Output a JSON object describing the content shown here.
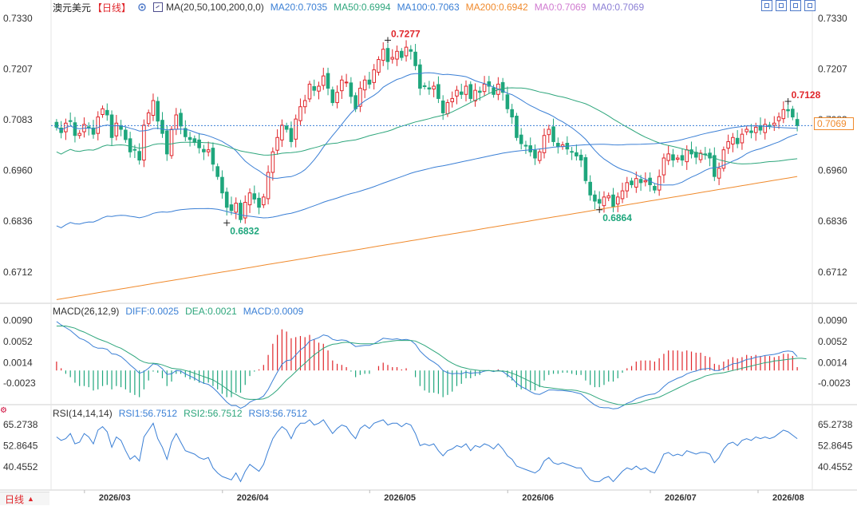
{
  "header": {
    "symbol": "澳元美元",
    "period": "【日线】",
    "settings_icon": "gear-icon",
    "ma_params": "MA(20,50,100,200,0,0)",
    "ma_values": [
      {
        "label": "MA20:0.7035",
        "color": "#3a7fd5"
      },
      {
        "label": "MA50:0.6994",
        "color": "#2ea67c"
      },
      {
        "label": "MA100:0.7063",
        "color": "#3a7fd5"
      },
      {
        "label": "MA200:0.6942",
        "color": "#f08a2c"
      },
      {
        "label": "MA0:0.7069",
        "color": "#d07ad0"
      },
      {
        "label": "MA0:0.7069",
        "color": "#8b7fd5"
      }
    ]
  },
  "toolbar": {
    "icons": [
      "layout-1-icon",
      "layout-2-icon",
      "layout-3-icon",
      "layout-4-icon"
    ]
  },
  "macd_header": {
    "title": "MACD(26,12,9)",
    "diff": "DIFF:0.0025",
    "dea": "DEA:0.0021",
    "macd": "MACD:0.0009"
  },
  "rsi_header": {
    "title": "RSI(14,14,14)",
    "rsi1": "RSI1:56.7512",
    "rsi2": "RSI2:56.7512",
    "rsi3": "RSI3:56.7512"
  },
  "bottom_tab": {
    "label": "日线",
    "arrow": "▲"
  },
  "current_price_tag": "0.7069",
  "chart_data": {
    "type": "candlestick",
    "price_axis": {
      "ticks": [
        "0.7330",
        "0.7207",
        "0.7083",
        "0.6960",
        "0.6836",
        "0.6712"
      ],
      "ylim": [
        0.664,
        0.734
      ]
    },
    "macd_axis": {
      "ticks": [
        "0.0090",
        "0.0052",
        "0.0014",
        "-0.0023"
      ],
      "ylim": [
        -0.006,
        0.0095
      ]
    },
    "rsi_axis": {
      "ticks": [
        "65.2738",
        "52.8645",
        "40.4552"
      ],
      "ylim": [
        28,
        68
      ]
    },
    "x_labels": [
      "2026/03",
      "2026/04",
      "2026/05",
      "2026/06",
      "2026/07",
      "2026/08"
    ],
    "annotations": [
      {
        "text": "0.7277",
        "type": "high"
      },
      {
        "text": "0.6832",
        "type": "low"
      },
      {
        "text": "0.6864",
        "type": "low"
      },
      {
        "text": "0.7128",
        "type": "high"
      }
    ],
    "reference_line": 0.7069,
    "colors": {
      "up": "#e0262b",
      "down": "#1ea67c",
      "ma20": "#3a7fd5",
      "ma50": "#2ea67c",
      "ma100": "#3a7fd5",
      "ma200": "#f08a2c",
      "diff": "#3a7fd5",
      "dea": "#2ea67c",
      "rsi": "#3a7fd5"
    },
    "closes": [
      0.7065,
      0.7052,
      0.7075,
      0.708,
      0.7045,
      0.705,
      0.7072,
      0.7065,
      0.7048,
      0.709,
      0.711,
      0.7095,
      0.704,
      0.7075,
      0.706,
      0.7035,
      0.7005,
      0.701,
      0.6985,
      0.707,
      0.71,
      0.713,
      0.708,
      0.705,
      0.7,
      0.706,
      0.7095,
      0.7068,
      0.7042,
      0.7035,
      0.7028,
      0.7015,
      0.7005,
      0.701,
      0.6975,
      0.6945,
      0.6905,
      0.687,
      0.6862,
      0.688,
      0.684,
      0.6882,
      0.6905,
      0.689,
      0.687,
      0.6895,
      0.6955,
      0.7005,
      0.704,
      0.707,
      0.706,
      0.703,
      0.7085,
      0.7115,
      0.713,
      0.717,
      0.7155,
      0.7165,
      0.719,
      0.716,
      0.7125,
      0.715,
      0.718,
      0.7175,
      0.714,
      0.711,
      0.716,
      0.718,
      0.717,
      0.7205,
      0.723,
      0.7255,
      0.7225,
      0.7235,
      0.725,
      0.7235,
      0.726,
      0.725,
      0.7215,
      0.716,
      0.7165,
      0.7158,
      0.7165,
      0.7135,
      0.71,
      0.7125,
      0.7135,
      0.7155,
      0.7145,
      0.7165,
      0.7135,
      0.7155,
      0.715,
      0.717,
      0.7165,
      0.7145,
      0.717,
      0.715,
      0.711,
      0.709,
      0.704,
      0.7025,
      0.702,
      0.7005,
      0.699,
      0.7005,
      0.7045,
      0.706,
      0.703,
      0.7018,
      0.7022,
      0.7012,
      0.7005,
      0.6995,
      0.6985,
      0.6935,
      0.69,
      0.6885,
      0.688,
      0.6895,
      0.6898,
      0.6872,
      0.6895,
      0.691,
      0.693,
      0.6925,
      0.694,
      0.693,
      0.6935,
      0.6925,
      0.6912,
      0.6945,
      0.699,
      0.7,
      0.6985,
      0.699,
      0.6985,
      0.701,
      0.7,
      0.6992,
      0.7002,
      0.7,
      0.699,
      0.6945,
      0.6965,
      0.701,
      0.703,
      0.704,
      0.7025,
      0.7048,
      0.706,
      0.7052,
      0.7065,
      0.7058,
      0.7072,
      0.7068,
      0.7075,
      0.709,
      0.7108,
      0.7105,
      0.709,
      0.7069
    ],
    "macd": {
      "diff": [
        0.0088,
        0.0082,
        0.0077,
        0.0072,
        0.0065,
        0.0058,
        0.0055,
        0.005,
        0.0043,
        0.004,
        0.004,
        0.0038,
        0.003,
        0.0029,
        0.0025,
        0.0018,
        0.001,
        0.0003,
        -0.0005,
        -0.0002,
        0.0004,
        0.0012,
        0.001,
        0.0003,
        -0.0007,
        -0.0006,
        0.0,
        -0.0001,
        -0.0006,
        -0.001,
        -0.0014,
        -0.0019,
        -0.0023,
        -0.0025,
        -0.0031,
        -0.0039,
        -0.0048,
        -0.0057,
        -0.0063,
        -0.0063,
        -0.0068,
        -0.0064,
        -0.0057,
        -0.0053,
        -0.0051,
        -0.0046,
        -0.0034,
        -0.0018,
        -0.0003,
        0.0011,
        0.0018,
        0.0019,
        0.0028,
        0.0037,
        0.0043,
        0.0053,
        0.0056,
        0.0059,
        0.0064,
        0.0062,
        0.0056,
        0.0054,
        0.0055,
        0.0054,
        0.0049,
        0.0043,
        0.0044,
        0.0045,
        0.0045,
        0.0048,
        0.0053,
        0.0058,
        0.0057,
        0.0056,
        0.0057,
        0.0055,
        0.0056,
        0.0054,
        0.0047,
        0.0035,
        0.0027,
        0.002,
        0.0015,
        0.0009,
        0.0,
        -0.0004,
        -0.0006,
        -0.0005,
        -0.0006,
        -0.0003,
        -0.0005,
        -0.0004,
        -0.0004,
        -0.0001,
        0.0,
        -0.0002,
        0.0,
        -0.0002,
        -0.0008,
        -0.0014,
        -0.0023,
        -0.0029,
        -0.0033,
        -0.0038,
        -0.0042,
        -0.0043,
        -0.0039,
        -0.0035,
        -0.0035,
        -0.0036,
        -0.0036,
        -0.0037,
        -0.0038,
        -0.004,
        -0.0042,
        -0.0049,
        -0.0056,
        -0.0062,
        -0.0066,
        -0.0067,
        -0.0067,
        -0.0069,
        -0.0068,
        -0.0064,
        -0.0059,
        -0.0056,
        -0.0051,
        -0.0048,
        -0.0045,
        -0.0043,
        -0.0042,
        -0.0037,
        -0.0029,
        -0.0022,
        -0.0018,
        -0.0014,
        -0.0011,
        -0.0006,
        -0.0003,
        -0.0001,
        0.0002,
        0.0003,
        0.0004,
        0.0,
        0.0,
        0.0004,
        0.0008,
        0.0012,
        0.0013,
        0.0016,
        0.002,
        0.0021,
        0.0024,
        0.0025,
        0.0027,
        0.0028,
        0.0029,
        0.0031,
        0.0034,
        0.0035,
        0.0034,
        0.0025
      ],
      "dea": [
        0.008,
        0.008,
        0.008,
        0.0078,
        0.0076,
        0.0072,
        0.0069,
        0.0065,
        0.0061,
        0.0057,
        0.0054,
        0.0051,
        0.0047,
        0.0043,
        0.004,
        0.0035,
        0.003,
        0.0025,
        0.0019,
        0.0015,
        0.0013,
        0.0013,
        0.0012,
        0.001,
        0.0007,
        0.0004,
        0.0003,
        0.0002,
        0.0,
        -0.0002,
        -0.0005,
        -0.0008,
        -0.0011,
        -0.0014,
        -0.0017,
        -0.0022,
        -0.0027,
        -0.0033,
        -0.0039,
        -0.0043,
        -0.0048,
        -0.0051,
        -0.0052,
        -0.0052,
        -0.0052,
        -0.0051,
        -0.0048,
        -0.0042,
        -0.0035,
        -0.0026,
        -0.0017,
        -0.001,
        -0.0002,
        0.0006,
        0.0013,
        0.0021,
        0.0028,
        0.0034,
        0.004,
        0.0044,
        0.0047,
        0.0048,
        0.005,
        0.0051,
        0.005,
        0.0049,
        0.0048,
        0.0048,
        0.0048,
        0.0048,
        0.0049,
        0.0051,
        0.0052,
        0.0053,
        0.0054,
        0.0054,
        0.0054,
        0.0054,
        0.0053,
        0.0049,
        0.0045,
        0.004,
        0.0035,
        0.003,
        0.0024,
        0.0018,
        0.0013,
        0.0009,
        0.0006,
        0.0004,
        0.0002,
        0.0001,
        0.0,
        0.0,
        0.0,
        -0.0001,
        -0.0001,
        -0.0001,
        -0.0002,
        -0.0005,
        -0.0008,
        -0.0012,
        -0.0016,
        -0.002,
        -0.0024,
        -0.0028,
        -0.003,
        -0.0031,
        -0.0032,
        -0.0033,
        -0.0034,
        -0.0035,
        -0.0035,
        -0.0036,
        -0.0038,
        -0.004,
        -0.0043,
        -0.0047,
        -0.0051,
        -0.0054,
        -0.0057,
        -0.0059,
        -0.0061,
        -0.0062,
        -0.0061,
        -0.006,
        -0.0059,
        -0.0057,
        -0.0054,
        -0.0052,
        -0.005,
        -0.0048,
        -0.0044,
        -0.004,
        -0.0036,
        -0.0032,
        -0.0028,
        -0.0024,
        -0.002,
        -0.0017,
        -0.0014,
        -0.001,
        -0.0008,
        -0.0006,
        -0.0005,
        -0.0004,
        -0.0002,
        0.0,
        0.0002,
        0.0004,
        0.0006,
        0.0008,
        0.001,
        0.0012,
        0.0014,
        0.0015,
        0.0017,
        0.0018,
        0.0019,
        0.002,
        0.0021,
        0.0022,
        0.0022,
        0.0021
      ]
    },
    "rsi": [
      58,
      56,
      57,
      60,
      54,
      55,
      60,
      58,
      54,
      62,
      64,
      61,
      52,
      58,
      56,
      50,
      45,
      47,
      44,
      58,
      62,
      66,
      57,
      52,
      45,
      55,
      60,
      55,
      50,
      49,
      48,
      46,
      45,
      46,
      40,
      37,
      35,
      34,
      33,
      37,
      32,
      38,
      42,
      40,
      38,
      42,
      50,
      57,
      61,
      64,
      62,
      57,
      63,
      66,
      66,
      68,
      65,
      66,
      68,
      64,
      60,
      63,
      65,
      64,
      60,
      57,
      63,
      65,
      63,
      66,
      67,
      68,
      65,
      66,
      66,
      64,
      66,
      65,
      60,
      53,
      54,
      53,
      54,
      50,
      47,
      50,
      51,
      53,
      52,
      54,
      50,
      53,
      52,
      54,
      53,
      51,
      54,
      51,
      47,
      45,
      41,
      40,
      39,
      38,
      37,
      39,
      44,
      46,
      43,
      42,
      43,
      42,
      41,
      40,
      40,
      36,
      33,
      32,
      32,
      34,
      35,
      32,
      35,
      38,
      40,
      39,
      41,
      39,
      40,
      38,
      37,
      42,
      48,
      49,
      47,
      48,
      47,
      50,
      49,
      48,
      49,
      49,
      48,
      43,
      46,
      51,
      54,
      55,
      53,
      56,
      57,
      56,
      58,
      57,
      58,
      57,
      58,
      60,
      62,
      61,
      59,
      57
    ]
  }
}
